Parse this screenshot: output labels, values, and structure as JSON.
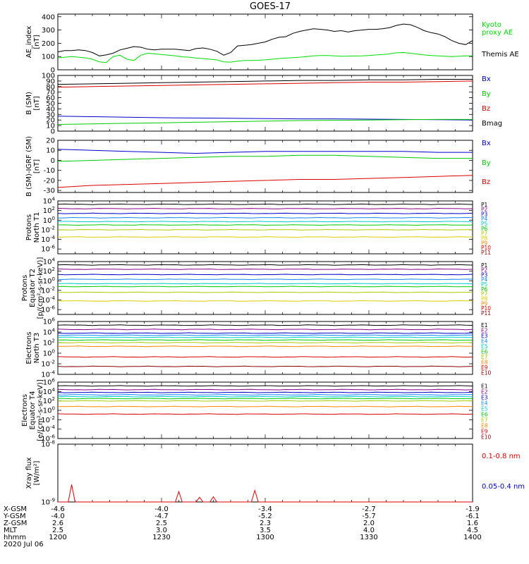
{
  "title": "GOES-17",
  "panels": [
    {
      "id": "ae",
      "ylabel": [
        "AE_index",
        "[nT]"
      ],
      "ticks": [
        {
          "v": 0,
          "t": "0"
        },
        {
          "v": 100,
          "t": "100"
        },
        {
          "v": 200,
          "t": "200"
        },
        {
          "v": 300,
          "t": "300"
        },
        {
          "v": 400,
          "t": "400"
        }
      ],
      "legend": [
        {
          "text": [
            "Kyoto",
            "proxy AE"
          ],
          "color": "#00dd00"
        },
        {
          "text": [
            "Themis AE"
          ],
          "color": "#000000"
        }
      ]
    },
    {
      "id": "bsm",
      "ylabel": [
        "B (SM)",
        "[nT]"
      ],
      "ticks": [
        {
          "v": 0,
          "t": "0"
        },
        {
          "v": 10,
          "t": "10"
        },
        {
          "v": 20,
          "t": "20"
        },
        {
          "v": 30,
          "t": "30"
        },
        {
          "v": 40,
          "t": "40"
        },
        {
          "v": 50,
          "t": "50"
        },
        {
          "v": 60,
          "t": "60"
        },
        {
          "v": 70,
          "t": "70"
        },
        {
          "v": 80,
          "t": "80"
        },
        {
          "v": 90,
          "t": "90"
        },
        {
          "v": 100,
          "t": "100"
        }
      ],
      "legend": [
        {
          "text": [
            "Bx"
          ],
          "color": "#0000cc"
        },
        {
          "text": [
            "By"
          ],
          "color": "#00cc00"
        },
        {
          "text": [
            "Bz"
          ],
          "color": "#dd0000"
        },
        {
          "text": [
            "Bmag"
          ],
          "color": "#000000"
        }
      ]
    },
    {
      "id": "bigrf",
      "ylabel": [
        "B (SM)-IGRF (SM)",
        "[nT]"
      ],
      "ticks": [
        {
          "v": -30,
          "t": "-30"
        },
        {
          "v": -20,
          "t": "-20"
        },
        {
          "v": -10,
          "t": "-10"
        },
        {
          "v": 0,
          "t": "0"
        },
        {
          "v": 10,
          "t": "10"
        },
        {
          "v": 20,
          "t": "20"
        }
      ],
      "legend": [
        {
          "text": [
            "Bx"
          ],
          "color": "#0000cc"
        },
        {
          "text": [
            "By"
          ],
          "color": "#00cc00"
        },
        {
          "text": [
            "Bz"
          ],
          "color": "#dd0000"
        }
      ]
    },
    {
      "id": "pn",
      "ylabel": [
        "Protons",
        "North T1"
      ],
      "ticks": [
        {
          "v": -6,
          "t": "10^-6"
        },
        {
          "v": -4,
          "t": "10^-4"
        },
        {
          "v": -2,
          "t": "10^-2"
        },
        {
          "v": 0,
          "t": "10^0"
        },
        {
          "v": 2,
          "t": "10^2"
        },
        {
          "v": 4,
          "t": "10^4"
        }
      ],
      "channels": [
        "P1",
        "P2",
        "P3",
        "P4",
        "P5",
        "P6",
        "P7",
        "P8",
        "P9",
        "P10",
        "P11"
      ]
    },
    {
      "id": "pe",
      "ylabel": [
        "Protons",
        "Equator T2",
        "[p/(cm²-s-sr-keV)]"
      ],
      "ticks": [
        {
          "v": -6,
          "t": "10^-6"
        },
        {
          "v": -4,
          "t": "10^-4"
        },
        {
          "v": -2,
          "t": "10^-2"
        },
        {
          "v": 0,
          "t": "10^0"
        },
        {
          "v": 2,
          "t": "10^2"
        },
        {
          "v": 4,
          "t": "10^4"
        }
      ],
      "channels": [
        "P1",
        "P2",
        "P3",
        "P4",
        "P5",
        "P6",
        "P7",
        "P8",
        "P9",
        "P10",
        "P11"
      ]
    },
    {
      "id": "en",
      "ylabel": [
        "Electrons",
        "North T3"
      ],
      "ticks": [
        {
          "v": -4,
          "t": "10^-4"
        },
        {
          "v": -2,
          "t": "10^-2"
        },
        {
          "v": 0,
          "t": "10^0"
        },
        {
          "v": 2,
          "t": "10^2"
        },
        {
          "v": 4,
          "t": "10^4"
        },
        {
          "v": 6,
          "t": "10^6"
        }
      ],
      "channels": [
        "E1",
        "E2",
        "E3",
        "E4",
        "E5",
        "E6",
        "E7",
        "E8",
        "E9",
        "E10"
      ]
    },
    {
      "id": "ee",
      "ylabel": [
        "Electrons",
        "Equator T4",
        "[e/(cm²-s-sr-keV)]"
      ],
      "ticks": [
        {
          "v": -6,
          "t": "10^-6"
        },
        {
          "v": -4,
          "t": "10^-4"
        },
        {
          "v": -2,
          "t": "10^-2"
        },
        {
          "v": 0,
          "t": "10^0"
        },
        {
          "v": 2,
          "t": "10^2"
        },
        {
          "v": 4,
          "t": "10^4"
        },
        {
          "v": 6,
          "t": "10^6"
        }
      ],
      "channels": [
        "E1",
        "E2",
        "E3",
        "E4",
        "E5",
        "E6",
        "E7",
        "E8",
        "E9",
        "E10"
      ]
    },
    {
      "id": "xray",
      "ylabel": [
        "Xray flux",
        "[W/m²]"
      ],
      "ticks": [
        {
          "v": -9,
          "t": "10^-9"
        },
        {
          "v": -8,
          "t": "10^-8"
        }
      ],
      "legend": [
        {
          "text": [
            "0.1-0.8 nm"
          ],
          "color": "#dd0000"
        },
        {
          "text": [
            "0.05-0.4 nm"
          ],
          "color": "#0000cc"
        }
      ]
    }
  ],
  "footer": {
    "labels": [
      "X-GSM",
      "Y-GSM",
      "Z-GSM",
      "MLT",
      "hhmm",
      "2020 Jul 06"
    ],
    "columns": [
      {
        "t": 0,
        "vals": [
          "-4.6",
          "-4.0",
          "2.6",
          "2.5",
          "1200"
        ]
      },
      {
        "t": 30,
        "vals": [
          "-4.0",
          "-4.7",
          "2.5",
          "3.0",
          "1230"
        ]
      },
      {
        "t": 60,
        "vals": [
          "-3.4",
          "-5.2",
          "2.3",
          "3.5",
          "1300"
        ]
      },
      {
        "t": 90,
        "vals": [
          "-2.7",
          "-5.7",
          "2.0",
          "4.0",
          "1330"
        ]
      },
      {
        "t": 120,
        "vals": [
          "-1.9",
          "-6.1",
          "1.6",
          "4.5",
          "1400"
        ]
      }
    ]
  },
  "chart_data": [
    {
      "type": "line",
      "panel": "ae",
      "xlabel": "hhmm",
      "ylabel": "AE_index [nT]",
      "ylim": [
        0,
        420
      ],
      "x": [
        0,
        2,
        4,
        6,
        8,
        10,
        12,
        14,
        16,
        18,
        20,
        22,
        24,
        26,
        28,
        30,
        32,
        34,
        36,
        38,
        40,
        42,
        44,
        46,
        48,
        50,
        52,
        54,
        56,
        58,
        60,
        62,
        64,
        66,
        68,
        70,
        72,
        74,
        76,
        78,
        80,
        82,
        84,
        86,
        88,
        90,
        92,
        94,
        96,
        98,
        100,
        102,
        104,
        106,
        108,
        110,
        112,
        114,
        116,
        118,
        120
      ],
      "series": [
        {
          "name": "Themis AE",
          "color": "#000000",
          "values": [
            135,
            145,
            145,
            150,
            145,
            130,
            105,
            112,
            125,
            150,
            162,
            175,
            170,
            155,
            150,
            155,
            155,
            155,
            150,
            145,
            160,
            165,
            155,
            140,
            110,
            130,
            180,
            185,
            190,
            200,
            210,
            230,
            245,
            250,
            275,
            290,
            300,
            310,
            305,
            300,
            290,
            295,
            285,
            295,
            300,
            305,
            305,
            310,
            318,
            335,
            345,
            340,
            320,
            295,
            280,
            270,
            250,
            220,
            200,
            190,
            220
          ]
        },
        {
          "name": "Kyoto proxy AE",
          "color": "#00dd00",
          "values": [
            90,
            95,
            100,
            95,
            90,
            80,
            60,
            55,
            100,
            110,
            80,
            70,
            110,
            125,
            120,
            115,
            110,
            105,
            98,
            95,
            88,
            85,
            80,
            75,
            60,
            58,
            65,
            70,
            70,
            72,
            75,
            80,
            85,
            88,
            92,
            95,
            100,
            105,
            108,
            108,
            105,
            102,
            103,
            104,
            105,
            108,
            112,
            115,
            120,
            128,
            130,
            125,
            118,
            112,
            108,
            105,
            102,
            100,
            102,
            104,
            106
          ]
        }
      ]
    },
    {
      "type": "line",
      "panel": "bsm",
      "xlabel": "hhmm",
      "ylabel": "B (SM) [nT]",
      "ylim": [
        0,
        100
      ],
      "x": [
        0,
        10,
        20,
        30,
        40,
        50,
        60,
        70,
        80,
        90,
        100,
        110,
        120
      ],
      "series": [
        {
          "name": "Bmag",
          "color": "#000000",
          "values": [
            84,
            85,
            86,
            87,
            88,
            89,
            90,
            91,
            91,
            92,
            92,
            93,
            93
          ]
        },
        {
          "name": "Bz",
          "color": "#dd0000",
          "values": [
            79,
            80,
            81,
            82,
            83,
            84,
            85,
            86,
            87,
            88,
            88,
            89,
            90
          ]
        },
        {
          "name": "Bx",
          "color": "#0000cc",
          "values": [
            27,
            26,
            25,
            24,
            23.5,
            23,
            22.5,
            22,
            22,
            21.5,
            21,
            20.5,
            20
          ]
        },
        {
          "name": "By",
          "color": "#00cc00",
          "values": [
            12,
            13,
            14,
            15,
            16,
            17,
            18,
            19,
            19.5,
            20,
            20.5,
            21,
            21
          ]
        }
      ]
    },
    {
      "type": "line",
      "panel": "bigrf",
      "xlabel": "hhmm",
      "ylabel": "B (SM)-IGRF (SM) [nT]",
      "ylim": [
        -32,
        20
      ],
      "x": [
        0,
        10,
        20,
        30,
        40,
        50,
        60,
        70,
        80,
        90,
        100,
        110,
        120
      ],
      "series": [
        {
          "name": "Bx",
          "color": "#0000cc",
          "values": [
            11,
            10,
            9,
            8,
            7,
            8,
            9,
            9,
            9,
            9,
            9,
            8,
            8
          ]
        },
        {
          "name": "By",
          "color": "#00cc00",
          "values": [
            -1,
            0,
            1,
            2,
            3,
            4,
            4,
            5,
            5,
            4,
            3,
            2,
            2
          ]
        },
        {
          "name": "Bz",
          "color": "#dd0000",
          "values": [
            -27,
            -25,
            -24,
            -23,
            -22,
            -21,
            -20,
            -19,
            -19,
            -18,
            -17,
            -16,
            -15
          ]
        }
      ]
    },
    {
      "type": "line",
      "panel": "pn",
      "xlabel": "hhmm",
      "ylabel": "Protons North T1 (log10 flux)",
      "ylim": [
        -7,
        4
      ],
      "series": [
        {
          "name": "P1",
          "color": "#000000",
          "level": 3.3
        },
        {
          "name": "P2",
          "color": "#880088",
          "level": 2.4
        },
        {
          "name": "P3",
          "color": "#0000cc",
          "level": 1.4
        },
        {
          "name": "P4",
          "color": "#1188ff",
          "level": 0.5
        },
        {
          "name": "P5",
          "color": "#00cccc",
          "level": -0.3
        },
        {
          "name": "P6",
          "color": "#00cc00",
          "level": -1.0
        },
        {
          "name": "P7",
          "color": "#aacc00",
          "level": -2.0
        },
        {
          "name": "P8",
          "color": "#ddcc00",
          "level": -3.5
        },
        {
          "name": "P9",
          "color": "#ff8800",
          "level": null
        },
        {
          "name": "P10",
          "color": "#dd0000",
          "level": null
        },
        {
          "name": "P11",
          "color": "#880000",
          "level": null
        }
      ]
    },
    {
      "type": "line",
      "panel": "pe",
      "xlabel": "hhmm",
      "ylabel": "Protons Equator T2 [p/(cm²-s-sr-keV)]",
      "ylim": [
        -7,
        4
      ],
      "series": [
        {
          "name": "P1",
          "color": "#000000",
          "level": 3.3
        },
        {
          "name": "P2",
          "color": "#880088",
          "level": 2.4
        },
        {
          "name": "P3",
          "color": "#0000cc",
          "level": 1.3
        },
        {
          "name": "P4",
          "color": "#1188ff",
          "level": 0.3
        },
        {
          "name": "P5",
          "color": "#00cccc",
          "level": -0.6
        },
        {
          "name": "P6",
          "color": "#00cc00",
          "level": -1.2
        },
        {
          "name": "P7",
          "color": "#aacc00",
          "level": -2.4
        },
        {
          "name": "P8",
          "color": "#ddcc00",
          "level": -4.2
        },
        {
          "name": "P9",
          "color": "#ff8800",
          "level": null
        },
        {
          "name": "P10",
          "color": "#dd0000",
          "level": null
        },
        {
          "name": "P11",
          "color": "#880000",
          "level": null
        }
      ]
    },
    {
      "type": "line",
      "panel": "en",
      "xlabel": "hhmm",
      "ylabel": "Electrons North T3 (log10 flux)",
      "ylim": [
        -4,
        6
      ],
      "series": [
        {
          "name": "E1",
          "color": "#000000",
          "level": 5.3
        },
        {
          "name": "E2",
          "color": "#880088",
          "level": 4.5
        },
        {
          "name": "E3",
          "color": "#0000cc",
          "level": 3.8
        },
        {
          "name": "E4",
          "color": "#1188ff",
          "level": 3.4
        },
        {
          "name": "E5",
          "color": "#00cccc",
          "level": 3.0
        },
        {
          "name": "E6",
          "color": "#00cc00",
          "level": 2.5
        },
        {
          "name": "E7",
          "color": "#aacc00",
          "level": 2.0
        },
        {
          "name": "E8",
          "color": "#ff8800",
          "level": 1.3
        },
        {
          "name": "E9",
          "color": "#dd0000",
          "level": -0.7
        },
        {
          "name": "E10",
          "color": "#880000",
          "level": -2.5
        }
      ]
    },
    {
      "type": "line",
      "panel": "ee",
      "xlabel": "hhmm",
      "ylabel": "Electrons Equator T4 [e/(cm²-s-sr-keV)]",
      "ylim": [
        -6,
        6
      ],
      "series": [
        {
          "name": "E1",
          "color": "#000000",
          "level": 5.2
        },
        {
          "name": "E2",
          "color": "#880088",
          "level": 4.4
        },
        {
          "name": "E3",
          "color": "#0000cc",
          "level": 3.8
        },
        {
          "name": "E4",
          "color": "#1188ff",
          "level": 3.3
        },
        {
          "name": "E5",
          "color": "#00cccc",
          "level": 2.9
        },
        {
          "name": "E6",
          "color": "#00cc00",
          "level": 2.5
        },
        {
          "name": "E7",
          "color": "#aacc00",
          "level": 2.0
        },
        {
          "name": "E8",
          "color": "#ff8800",
          "level": 0.8
        },
        {
          "name": "E9",
          "color": "#dd0000",
          "level": -0.8
        },
        {
          "name": "E10",
          "color": "#880000",
          "level": null
        }
      ]
    },
    {
      "type": "line",
      "panel": "xray",
      "xlabel": "hhmm",
      "ylabel": "Xray flux [W/m²]",
      "ylim": [
        -9,
        -8
      ],
      "x": [
        0,
        3,
        4,
        5,
        6,
        34,
        35,
        36,
        40,
        41,
        42,
        44,
        45,
        46,
        56,
        57,
        58,
        120
      ],
      "series": [
        {
          "name": "0.1-0.8 nm",
          "color": "#dd0000",
          "values": [
            -9,
            -9,
            -8.7,
            -9,
            -9,
            -9,
            -8.82,
            -9,
            -9,
            -8.92,
            -9,
            -9,
            -8.91,
            -9,
            -9,
            -8.8,
            -9,
            -9
          ]
        }
      ]
    }
  ]
}
